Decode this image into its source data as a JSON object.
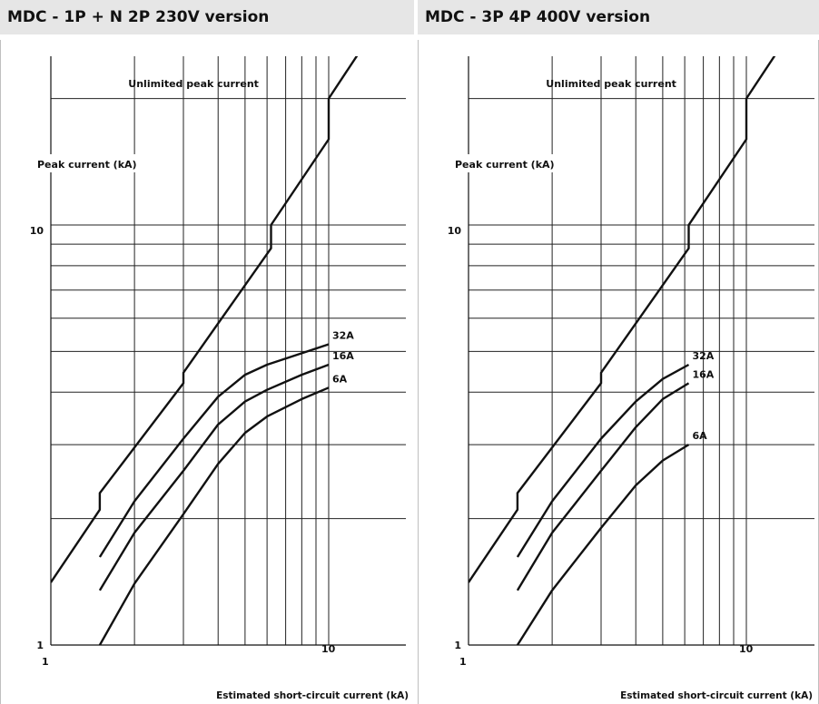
{
  "charts": [
    {
      "title": "MDC - 1P + N 2P 230V version",
      "chart_data": {
        "type": "line",
        "xlabel": "Estimated short-circuit current (kA)",
        "ylabel": "Peak current (kA)",
        "xscale": "log",
        "yscale": "log",
        "xlim": [
          1,
          18
        ],
        "ylim": [
          1,
          25
        ],
        "x_tick_labels": [
          "1",
          "10"
        ],
        "y_tick_labels": [
          "1",
          "10"
        ],
        "grid": true,
        "annotation": "Unlimited peak current",
        "unlimited_line": [
          [
            1,
            1.41
          ],
          [
            1.5,
            2.1
          ],
          [
            1.5,
            2.3
          ],
          [
            3,
            4.2
          ],
          [
            3,
            4.45
          ],
          [
            6.2,
            8.8
          ],
          [
            6.2,
            10
          ],
          [
            10,
            16
          ],
          [
            10,
            20
          ],
          [
            15,
            30
          ]
        ],
        "series": [
          {
            "name": "32A",
            "points": [
              [
                1.5,
                1.62
              ],
              [
                2,
                2.2
              ],
              [
                3,
                3.1
              ],
              [
                4,
                3.9
              ],
              [
                5,
                4.4
              ],
              [
                6,
                4.65
              ],
              [
                8,
                4.95
              ],
              [
                10,
                5.2
              ]
            ]
          },
          {
            "name": "16A",
            "points": [
              [
                1.5,
                1.35
              ],
              [
                2,
                1.85
              ],
              [
                3,
                2.6
              ],
              [
                4,
                3.35
              ],
              [
                5,
                3.8
              ],
              [
                6,
                4.05
              ],
              [
                8,
                4.4
              ],
              [
                10,
                4.65
              ]
            ]
          },
          {
            "name": "6A",
            "points": [
              [
                1.5,
                1.0
              ],
              [
                2,
                1.4
              ],
              [
                3,
                2.05
              ],
              [
                4,
                2.7
              ],
              [
                5,
                3.2
              ],
              [
                6,
                3.5
              ],
              [
                8,
                3.85
              ],
              [
                10,
                4.1
              ]
            ]
          }
        ]
      }
    },
    {
      "title": "MDC - 3P 4P 400V version",
      "chart_data": {
        "type": "line",
        "xlabel": "Estimated short-circuit current (kA)",
        "ylabel": "Peak current (kA)",
        "xscale": "log",
        "yscale": "log",
        "xlim": [
          1,
          18
        ],
        "ylim": [
          1,
          25
        ],
        "x_tick_labels": [
          "1",
          "10"
        ],
        "y_tick_labels": [
          "1",
          "10"
        ],
        "grid": true,
        "annotation": "Unlimited peak current",
        "unlimited_line": [
          [
            1,
            1.41
          ],
          [
            1.5,
            2.1
          ],
          [
            1.5,
            2.3
          ],
          [
            3,
            4.2
          ],
          [
            3,
            4.45
          ],
          [
            6.2,
            8.8
          ],
          [
            6.2,
            10
          ],
          [
            10,
            16
          ],
          [
            10,
            20
          ],
          [
            15,
            30
          ]
        ],
        "series": [
          {
            "name": "32A",
            "points": [
              [
                1.5,
                1.62
              ],
              [
                2,
                2.2
              ],
              [
                3,
                3.1
              ],
              [
                4,
                3.8
              ],
              [
                5,
                4.3
              ],
              [
                6.2,
                4.65
              ]
            ]
          },
          {
            "name": "16A",
            "points": [
              [
                1.5,
                1.35
              ],
              [
                2,
                1.85
              ],
              [
                3,
                2.6
              ],
              [
                4,
                3.3
              ],
              [
                5,
                3.85
              ],
              [
                6.2,
                4.2
              ]
            ]
          },
          {
            "name": "6A",
            "points": [
              [
                1.5,
                1.0
              ],
              [
                2,
                1.35
              ],
              [
                3,
                1.9
              ],
              [
                4,
                2.4
              ],
              [
                5,
                2.75
              ],
              [
                6.2,
                3.0
              ]
            ]
          }
        ]
      }
    }
  ]
}
